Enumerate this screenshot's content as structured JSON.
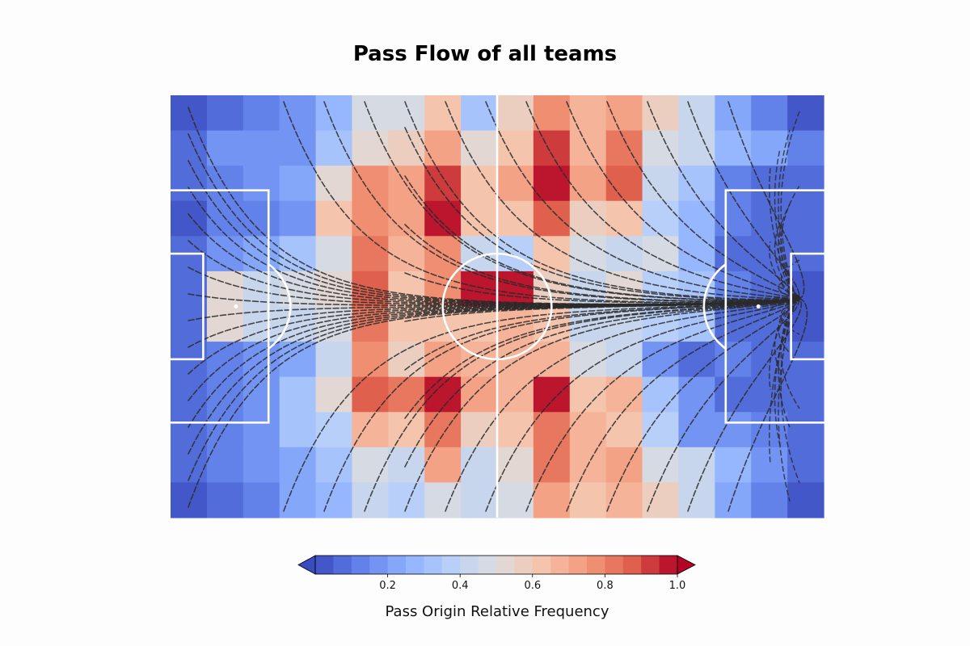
{
  "chart_data": {
    "type": "heatmap",
    "title": "Pass Flow of all teams",
    "colorbar": {
      "label": "Pass Origin Relative Frequency",
      "ticks": [
        0.2,
        0.4,
        0.6,
        0.8,
        1.0
      ],
      "tick_labels": [
        "0.2",
        "0.4",
        "0.6",
        "0.8",
        "1.0"
      ],
      "range": [
        0.0,
        1.0
      ],
      "colormap": "coolwarm",
      "extend": "both"
    },
    "grid": {
      "cols": 18,
      "rows": 12
    },
    "values": [
      [
        0.02,
        0.08,
        0.12,
        0.18,
        0.25,
        0.45,
        0.45,
        0.6,
        0.3,
        0.55,
        0.75,
        0.65,
        0.72,
        0.55,
        0.42,
        0.2,
        0.14,
        0.04
      ],
      [
        0.05,
        0.15,
        0.16,
        0.18,
        0.32,
        0.5,
        0.55,
        0.73,
        0.52,
        0.63,
        0.92,
        0.66,
        0.8,
        0.45,
        0.42,
        0.25,
        0.2,
        0.1
      ],
      [
        0.05,
        0.1,
        0.15,
        0.22,
        0.52,
        0.75,
        0.73,
        0.93,
        0.62,
        0.7,
        1.0,
        0.7,
        0.85,
        0.42,
        0.3,
        0.14,
        0.08,
        0.08
      ],
      [
        0.02,
        0.12,
        0.12,
        0.18,
        0.62,
        0.78,
        0.7,
        1.0,
        0.62,
        0.6,
        0.88,
        0.55,
        0.6,
        0.35,
        0.25,
        0.1,
        0.07,
        0.05
      ],
      [
        0.05,
        0.15,
        0.2,
        0.34,
        0.45,
        0.82,
        0.65,
        0.75,
        0.4,
        0.35,
        0.62,
        0.45,
        0.42,
        0.45,
        0.25,
        0.08,
        0.05,
        0.05
      ],
      [
        0.05,
        0.5,
        0.4,
        0.45,
        0.5,
        0.85,
        0.6,
        0.75,
        0.97,
        0.95,
        0.58,
        0.42,
        0.5,
        0.38,
        0.3,
        0.1,
        0.05,
        0.04
      ],
      [
        0.05,
        0.5,
        0.4,
        0.4,
        0.45,
        0.8,
        0.6,
        0.6,
        0.6,
        0.65,
        0.6,
        0.4,
        0.4,
        0.35,
        0.3,
        0.08,
        0.05,
        0.04
      ],
      [
        0.05,
        0.12,
        0.15,
        0.24,
        0.42,
        0.78,
        0.55,
        0.7,
        0.65,
        0.68,
        0.65,
        0.45,
        0.44,
        0.18,
        0.08,
        0.1,
        0.05,
        0.05
      ],
      [
        0.05,
        0.12,
        0.18,
        0.32,
        0.52,
        0.88,
        0.8,
        1.0,
        0.7,
        0.68,
        0.95,
        0.6,
        0.68,
        0.3,
        0.15,
        0.08,
        0.07,
        0.05
      ],
      [
        0.05,
        0.1,
        0.18,
        0.32,
        0.35,
        0.65,
        0.62,
        0.8,
        0.55,
        0.6,
        0.8,
        0.65,
        0.6,
        0.35,
        0.18,
        0.15,
        0.1,
        0.05
      ],
      [
        0.05,
        0.1,
        0.15,
        0.22,
        0.3,
        0.45,
        0.42,
        0.7,
        0.4,
        0.5,
        0.8,
        0.65,
        0.7,
        0.45,
        0.4,
        0.25,
        0.18,
        0.08
      ],
      [
        0.02,
        0.08,
        0.12,
        0.2,
        0.25,
        0.4,
        0.35,
        0.45,
        0.42,
        0.45,
        0.72,
        0.62,
        0.68,
        0.55,
        0.42,
        0.2,
        0.12,
        0.02
      ]
    ]
  }
}
